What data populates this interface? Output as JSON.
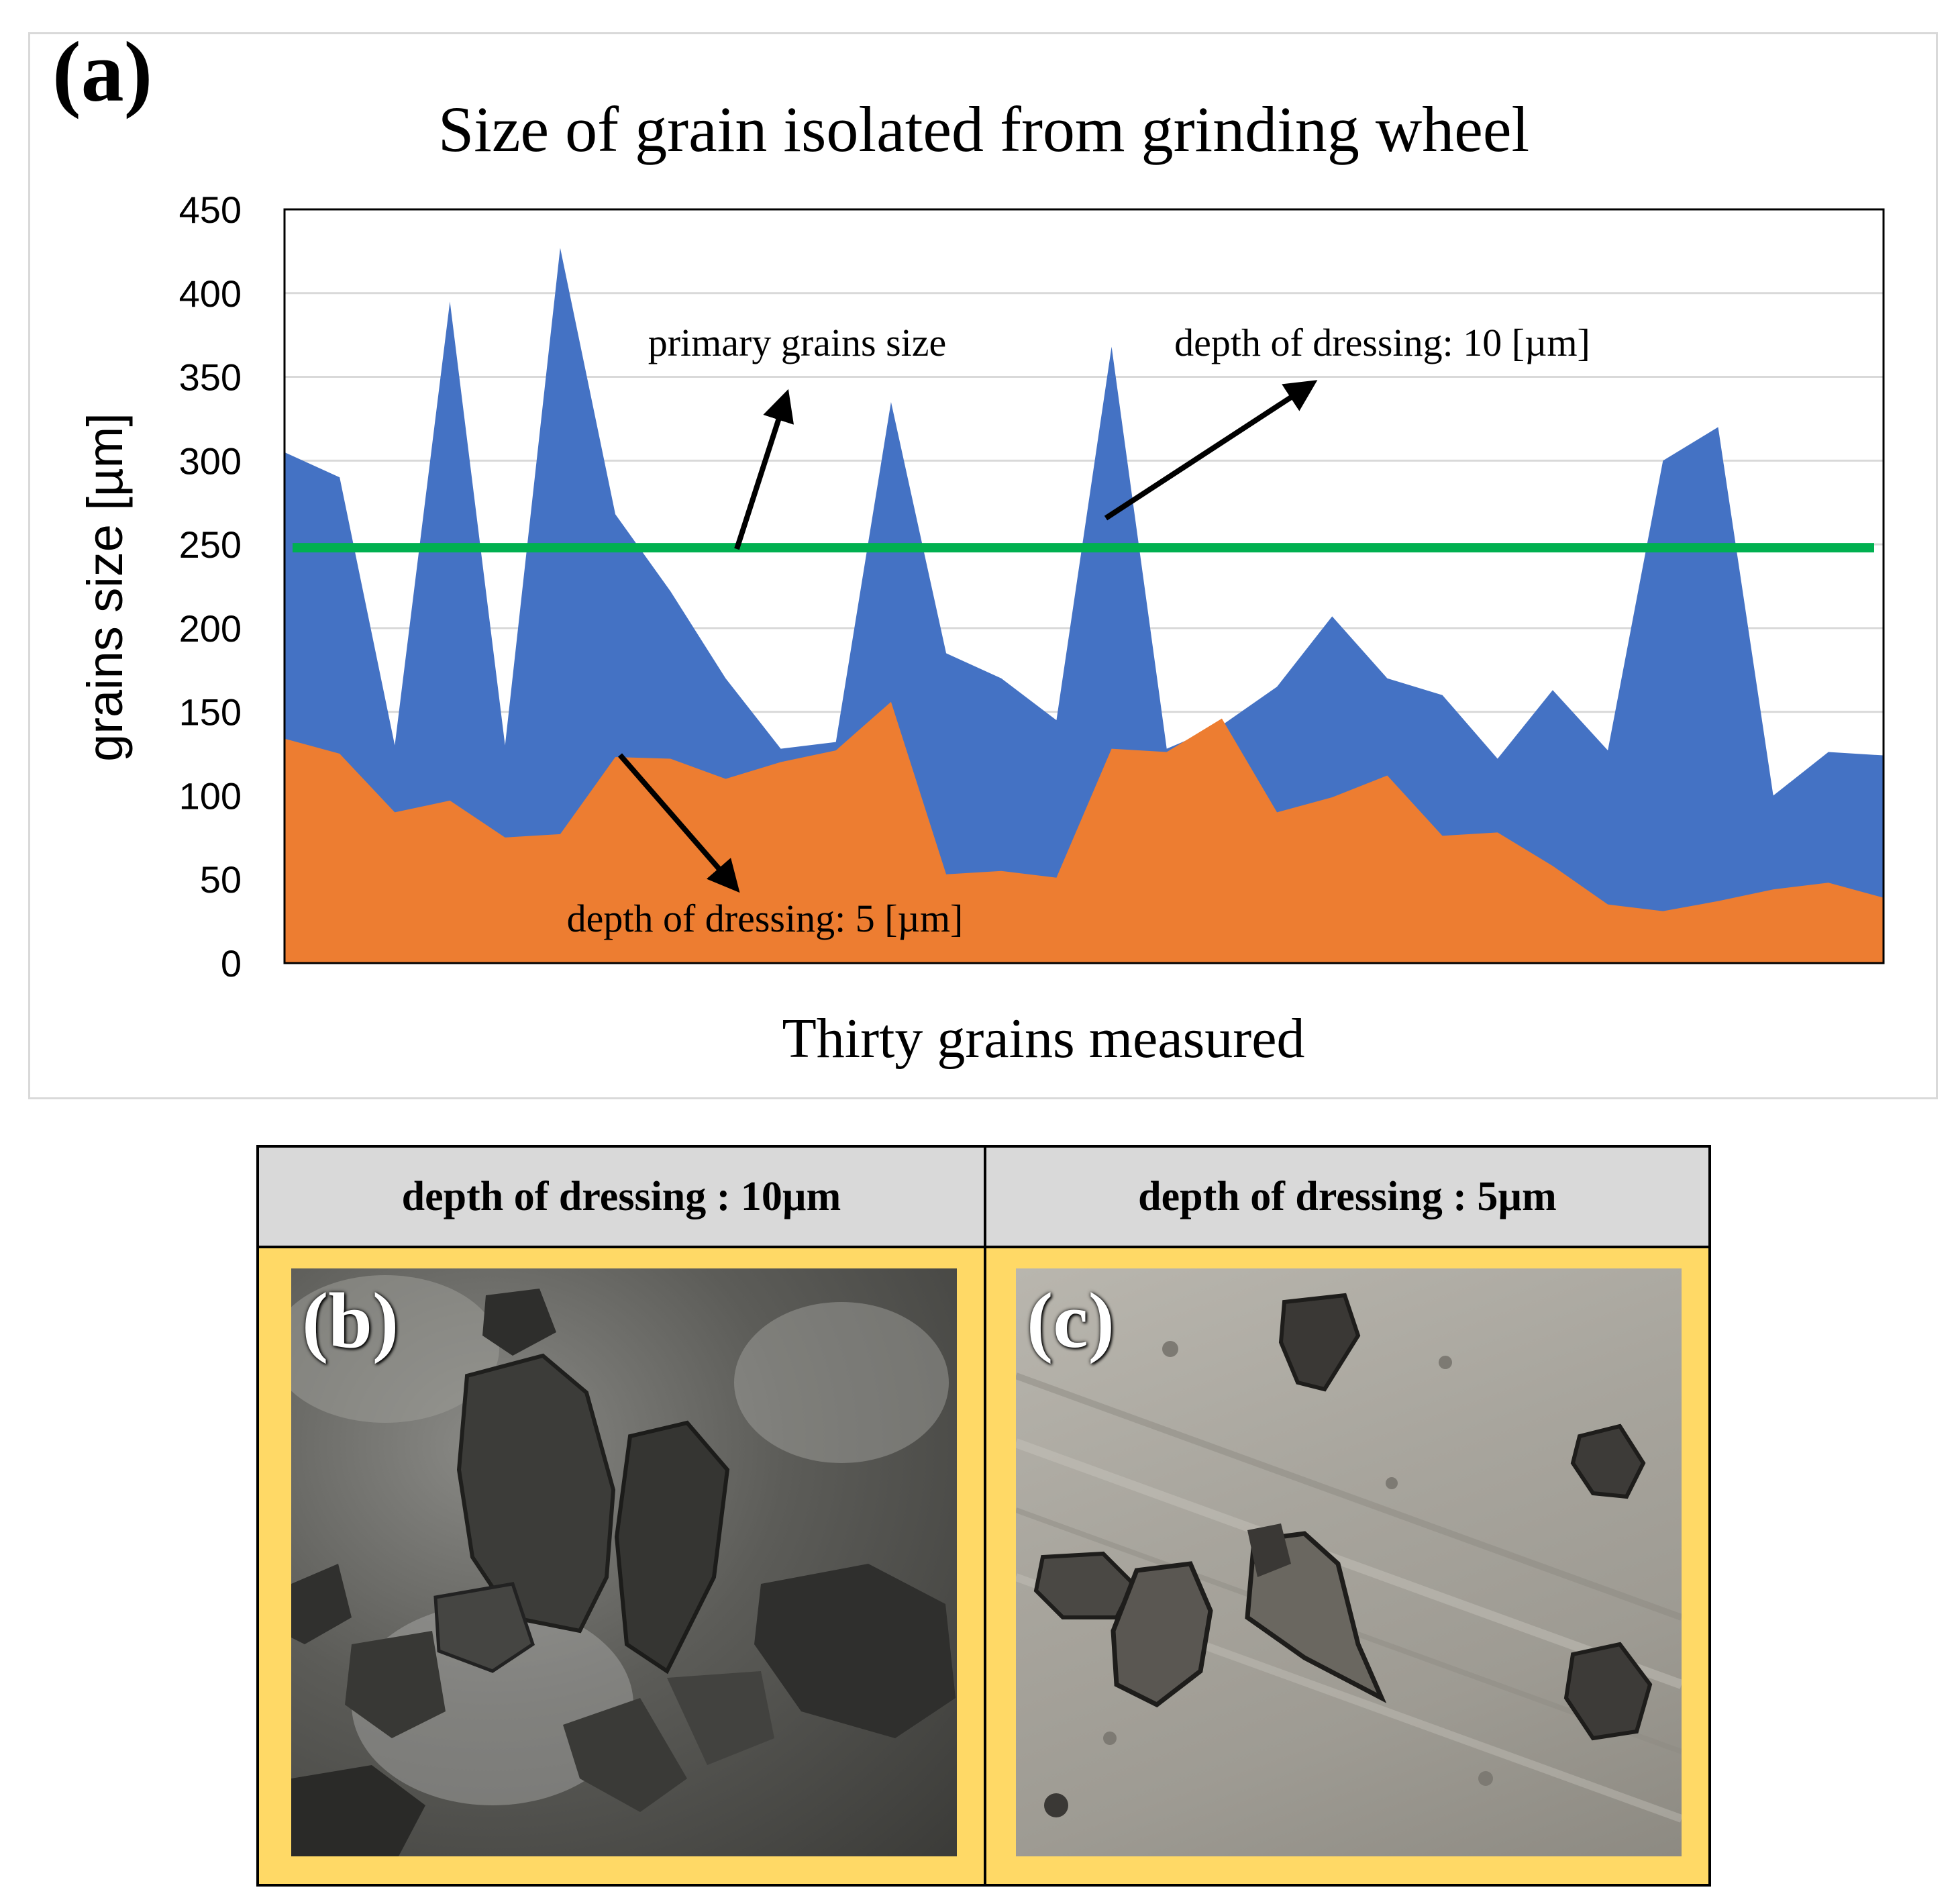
{
  "panels": {
    "a": "(a)",
    "b": "(b)",
    "c": "(c)"
  },
  "chart_data": {
    "type": "area",
    "title": "Size of grain isolated from grinding wheel",
    "xlabel": "Thirty grains measured",
    "ylabel": "grains size [µm]",
    "ylim": [
      0,
      450
    ],
    "yticks": [
      0,
      50,
      100,
      150,
      200,
      250,
      300,
      350,
      400,
      450
    ],
    "grid": true,
    "x": [
      1,
      2,
      3,
      4,
      5,
      6,
      7,
      8,
      9,
      10,
      11,
      12,
      13,
      14,
      15,
      16,
      17,
      18,
      19,
      20,
      21,
      22,
      23,
      24,
      25,
      26,
      27,
      28,
      29,
      30
    ],
    "series": [
      {
        "name": "depth of dressing: 10 [µm]",
        "color": "#4472c4",
        "values": [
          305,
          290,
          130,
          395,
          130,
          427,
          268,
          222,
          170,
          128,
          132,
          335,
          185,
          170,
          145,
          368,
          128,
          142,
          165,
          207,
          170,
          160,
          122,
          163,
          127,
          300,
          320,
          100,
          126,
          124
        ]
      },
      {
        "name": "depth of dressing: 5 [µm]",
        "color": "#ed7d31",
        "values": [
          134,
          125,
          90,
          97,
          75,
          77,
          123,
          122,
          110,
          120,
          127,
          156,
          53,
          55,
          51,
          128,
          126,
          146,
          90,
          99,
          112,
          76,
          78,
          58,
          35,
          31,
          37,
          44,
          48,
          39
        ]
      }
    ],
    "reference_line": {
      "name": "primary grains size",
      "value": 248,
      "color": "#00b050"
    },
    "annotations": [
      {
        "text": "primary grains size"
      },
      {
        "text": "depth of dressing: 10 [µm]"
      },
      {
        "text": "depth of dressing: 5 [µm]"
      }
    ]
  },
  "table": {
    "headers": [
      "depth of dressing : 10µm",
      "depth of dressing : 5µm"
    ],
    "cell_color": "#ffd966",
    "header_color": "#d9d9d9"
  }
}
